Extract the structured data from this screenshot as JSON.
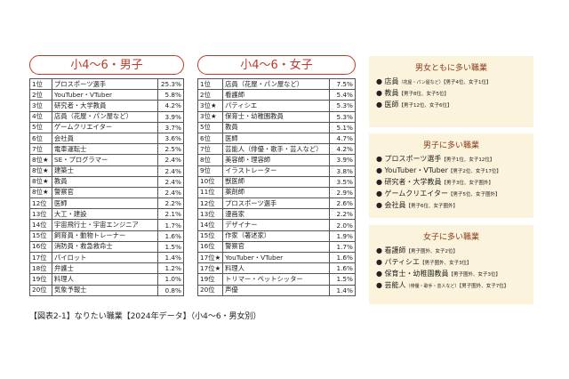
{
  "tables": [
    {
      "title": "小4～6・男子",
      "rows": [
        [
          "1位",
          "プロスポーツ選手",
          "25.3%"
        ],
        [
          "2位",
          "YouTuber・VTuber",
          "5.8%"
        ],
        [
          "3位",
          "研究者・大学教員",
          "4.2%"
        ],
        [
          "4位",
          "店員（花屋・パン屋など）",
          "3.9%"
        ],
        [
          "5位",
          "ゲームクリエイター",
          "3.7%"
        ],
        [
          "6位",
          "会社員",
          "3.6%"
        ],
        [
          "7位",
          "電車運転士",
          "2.5%"
        ],
        [
          "8位★",
          "SE・プログラマー",
          "2.4%"
        ],
        [
          "8位★",
          "建築士",
          "2.4%"
        ],
        [
          "8位★",
          "教員",
          "2.4%"
        ],
        [
          "8位★",
          "警察官",
          "2.4%"
        ],
        [
          "12位",
          "医師",
          "2.2%"
        ],
        [
          "13位",
          "大工・建設",
          "2.1%"
        ],
        [
          "14位",
          "宇宙飛行士・宇宙エンジニア",
          "1.7%"
        ],
        [
          "15位",
          "飼育員・動物トレーナー",
          "1.6%"
        ],
        [
          "16位",
          "消防員・救急救命士",
          "1.5%"
        ],
        [
          "17位",
          "パイロット",
          "1.4%"
        ],
        [
          "18位",
          "弁護士",
          "1.2%"
        ],
        [
          "19位",
          "料理人",
          "1.0%"
        ],
        [
          "20位",
          "気象予報士",
          "0.8%"
        ]
      ]
    },
    {
      "title": "小4～6・女子",
      "rows": [
        [
          "1位",
          "店員（花屋・パン屋など）",
          "7.5%"
        ],
        [
          "2位",
          "看護師",
          "5.4%"
        ],
        [
          "3位★",
          "パティシエ",
          "5.3%"
        ],
        [
          "3位★",
          "保育士・幼稚園教員",
          "5.3%"
        ],
        [
          "5位",
          "教員",
          "5.1%"
        ],
        [
          "6位",
          "医師",
          "4.7%"
        ],
        [
          "7位",
          "芸能人（俳優・歌手・芸人など）",
          "4.2%"
        ],
        [
          "8位",
          "美容師・理容師",
          "3.9%"
        ],
        [
          "9位",
          "イラストレーター",
          "3.8%"
        ],
        [
          "10位",
          "獣医師",
          "3.5%"
        ],
        [
          "11位",
          "薬剤師",
          "2.9%"
        ],
        [
          "12位",
          "プロスポーツ選手",
          "2.6%"
        ],
        [
          "13位",
          "漫画家",
          "2.2%"
        ],
        [
          "14位",
          "デザイナー",
          "2.0%"
        ],
        [
          "15位",
          "作家（著述家）",
          "1.9%"
        ],
        [
          "16位",
          "警察官",
          "1.7%"
        ],
        [
          "17位★",
          "YouTuber・VTuber",
          "1.6%"
        ],
        [
          "17位★",
          "料理人",
          "1.6%"
        ],
        [
          "19位",
          "トリマー・ペットシッター",
          "1.5%"
        ],
        [
          "20位",
          "声優",
          "1.4%"
        ]
      ]
    }
  ],
  "cards": [
    {
      "title": "男女ともに多い職業",
      "items": [
        {
          "name": "店員",
          "note": "（花屋・パン屋など）",
          "detail": "【男子4位、女子1位】"
        },
        {
          "name": "教員",
          "detail": "【男子8位、女子5位】"
        },
        {
          "name": "医師",
          "detail": "【男子12位、女子6位】"
        }
      ]
    },
    {
      "title": "男子に多い職業",
      "items": [
        {
          "name": "プロスポーツ選手",
          "detail": "【男子1位、女子12位】"
        },
        {
          "name": "YouTuber・VTuber",
          "detail": "【男子2位、女子17位】"
        },
        {
          "name": "研究者・大学教員",
          "detail": "【男子3位、女子圏外】"
        },
        {
          "name": "ゲームクリエイター",
          "detail": "【男子5位、女子圏外】"
        },
        {
          "name": "会社員",
          "detail": "【男子6位、女子圏外】"
        }
      ]
    },
    {
      "title": "女子に多い職業",
      "items": [
        {
          "name": "看護師",
          "detail": "【男子圏外、女子2位】"
        },
        {
          "name": "パティシエ",
          "detail": "【男子圏外、女子3位】"
        },
        {
          "name": "保育士・幼稚園教員",
          "detail": "【男子圏外、女子3位】"
        },
        {
          "name": "芸能人",
          "note": "（俳優・歌手・芸人など）",
          "detail": "【男子圏外、女子7位】"
        }
      ]
    }
  ],
  "caption": "【図表2-1】なりたい職業【2024年データ】（小4～6・男女別）"
}
